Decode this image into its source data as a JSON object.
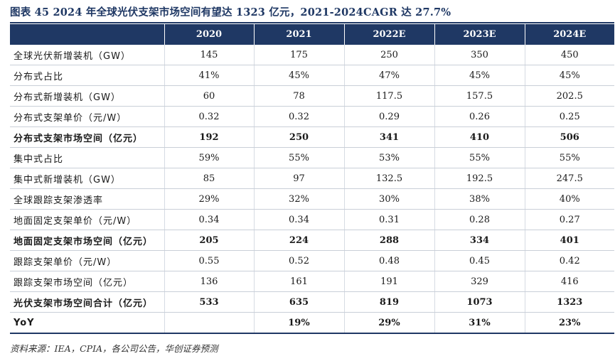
{
  "title": "图表 45  2024 年全球光伏支架市场空间有望达 1323 亿元，2021-2024CAGR 达 27.7%",
  "table": {
    "headers": [
      "",
      "2020",
      "2021",
      "2022E",
      "2023E",
      "2024E"
    ],
    "rows": [
      {
        "label": "全球光伏新增装机（GW）",
        "values": [
          "145",
          "175",
          "250",
          "350",
          "450"
        ],
        "bold": false
      },
      {
        "label": "分布式占比",
        "values": [
          "41%",
          "45%",
          "47%",
          "45%",
          "45%"
        ],
        "bold": false
      },
      {
        "label": "分布式新增装机（GW）",
        "values": [
          "60",
          "78",
          "117.5",
          "157.5",
          "202.5"
        ],
        "bold": false
      },
      {
        "label": "分布式支架单价（元/W）",
        "values": [
          "0.32",
          "0.32",
          "0.29",
          "0.26",
          "0.25"
        ],
        "bold": false
      },
      {
        "label": "分布式支架市场空间（亿元）",
        "values": [
          "192",
          "250",
          "341",
          "410",
          "506"
        ],
        "bold": true
      },
      {
        "label": "集中式占比",
        "values": [
          "59%",
          "55%",
          "53%",
          "55%",
          "55%"
        ],
        "bold": false
      },
      {
        "label": "集中式新增装机（GW）",
        "values": [
          "85",
          "97",
          "132.5",
          "192.5",
          "247.5"
        ],
        "bold": false
      },
      {
        "label": "全球跟踪支架渗透率",
        "values": [
          "29%",
          "32%",
          "30%",
          "38%",
          "40%"
        ],
        "bold": false
      },
      {
        "label": "地面固定支架单价（元/W）",
        "values": [
          "0.34",
          "0.34",
          "0.31",
          "0.28",
          "0.27"
        ],
        "bold": false
      },
      {
        "label": "地面固定支架市场空间（亿元）",
        "values": [
          "205",
          "224",
          "288",
          "334",
          "401"
        ],
        "bold": true
      },
      {
        "label": "跟踪支架单价（元/W）",
        "values": [
          "0.55",
          "0.52",
          "0.48",
          "0.45",
          "0.42"
        ],
        "bold": false
      },
      {
        "label": "跟踪支架市场空间（亿元）",
        "values": [
          "136",
          "161",
          "191",
          "329",
          "416"
        ],
        "bold": false
      },
      {
        "label": "光伏支架市场空间合计（亿元）",
        "values": [
          "533",
          "635",
          "819",
          "1073",
          "1323"
        ],
        "bold": true
      },
      {
        "label": "YoY",
        "values": [
          "",
          "19%",
          "29%",
          "31%",
          "23%"
        ],
        "bold": true
      }
    ]
  },
  "source": "资料来源：IEA，CPIA，各公司公告，华创证券预测"
}
